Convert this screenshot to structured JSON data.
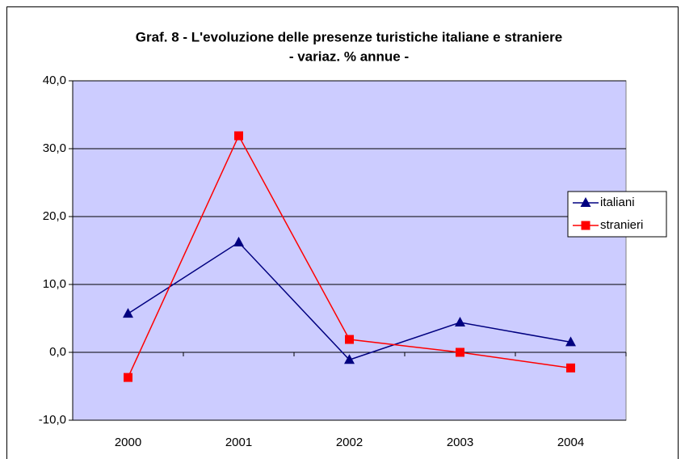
{
  "chart_data": {
    "type": "line",
    "title": "Graf. 8 - L'evoluzione delle presenze turistiche italiane e straniere",
    "subtitle": "- variaz. % annue -",
    "categories": [
      "2000",
      "2001",
      "2002",
      "2003",
      "2004"
    ],
    "series": [
      {
        "name": "italiani",
        "color": "#000080",
        "marker": "triangle",
        "values": [
          5.7,
          16.2,
          -1.1,
          4.4,
          1.5
        ]
      },
      {
        "name": "stranieri",
        "color": "#ff0000",
        "marker": "square",
        "values": [
          -3.7,
          31.9,
          1.9,
          0.0,
          -2.3
        ]
      }
    ],
    "ylim": [
      -10,
      40
    ],
    "yticks": [
      {
        "value": -10,
        "label": "-10,0"
      },
      {
        "value": 0,
        "label": "0,0"
      },
      {
        "value": 10,
        "label": "10,0"
      },
      {
        "value": 20,
        "label": "20,0"
      },
      {
        "value": 30,
        "label": "30,0"
      },
      {
        "value": 40,
        "label": "40,0"
      }
    ],
    "grid": true,
    "legend": "right",
    "plot_background": "#ccccff"
  }
}
